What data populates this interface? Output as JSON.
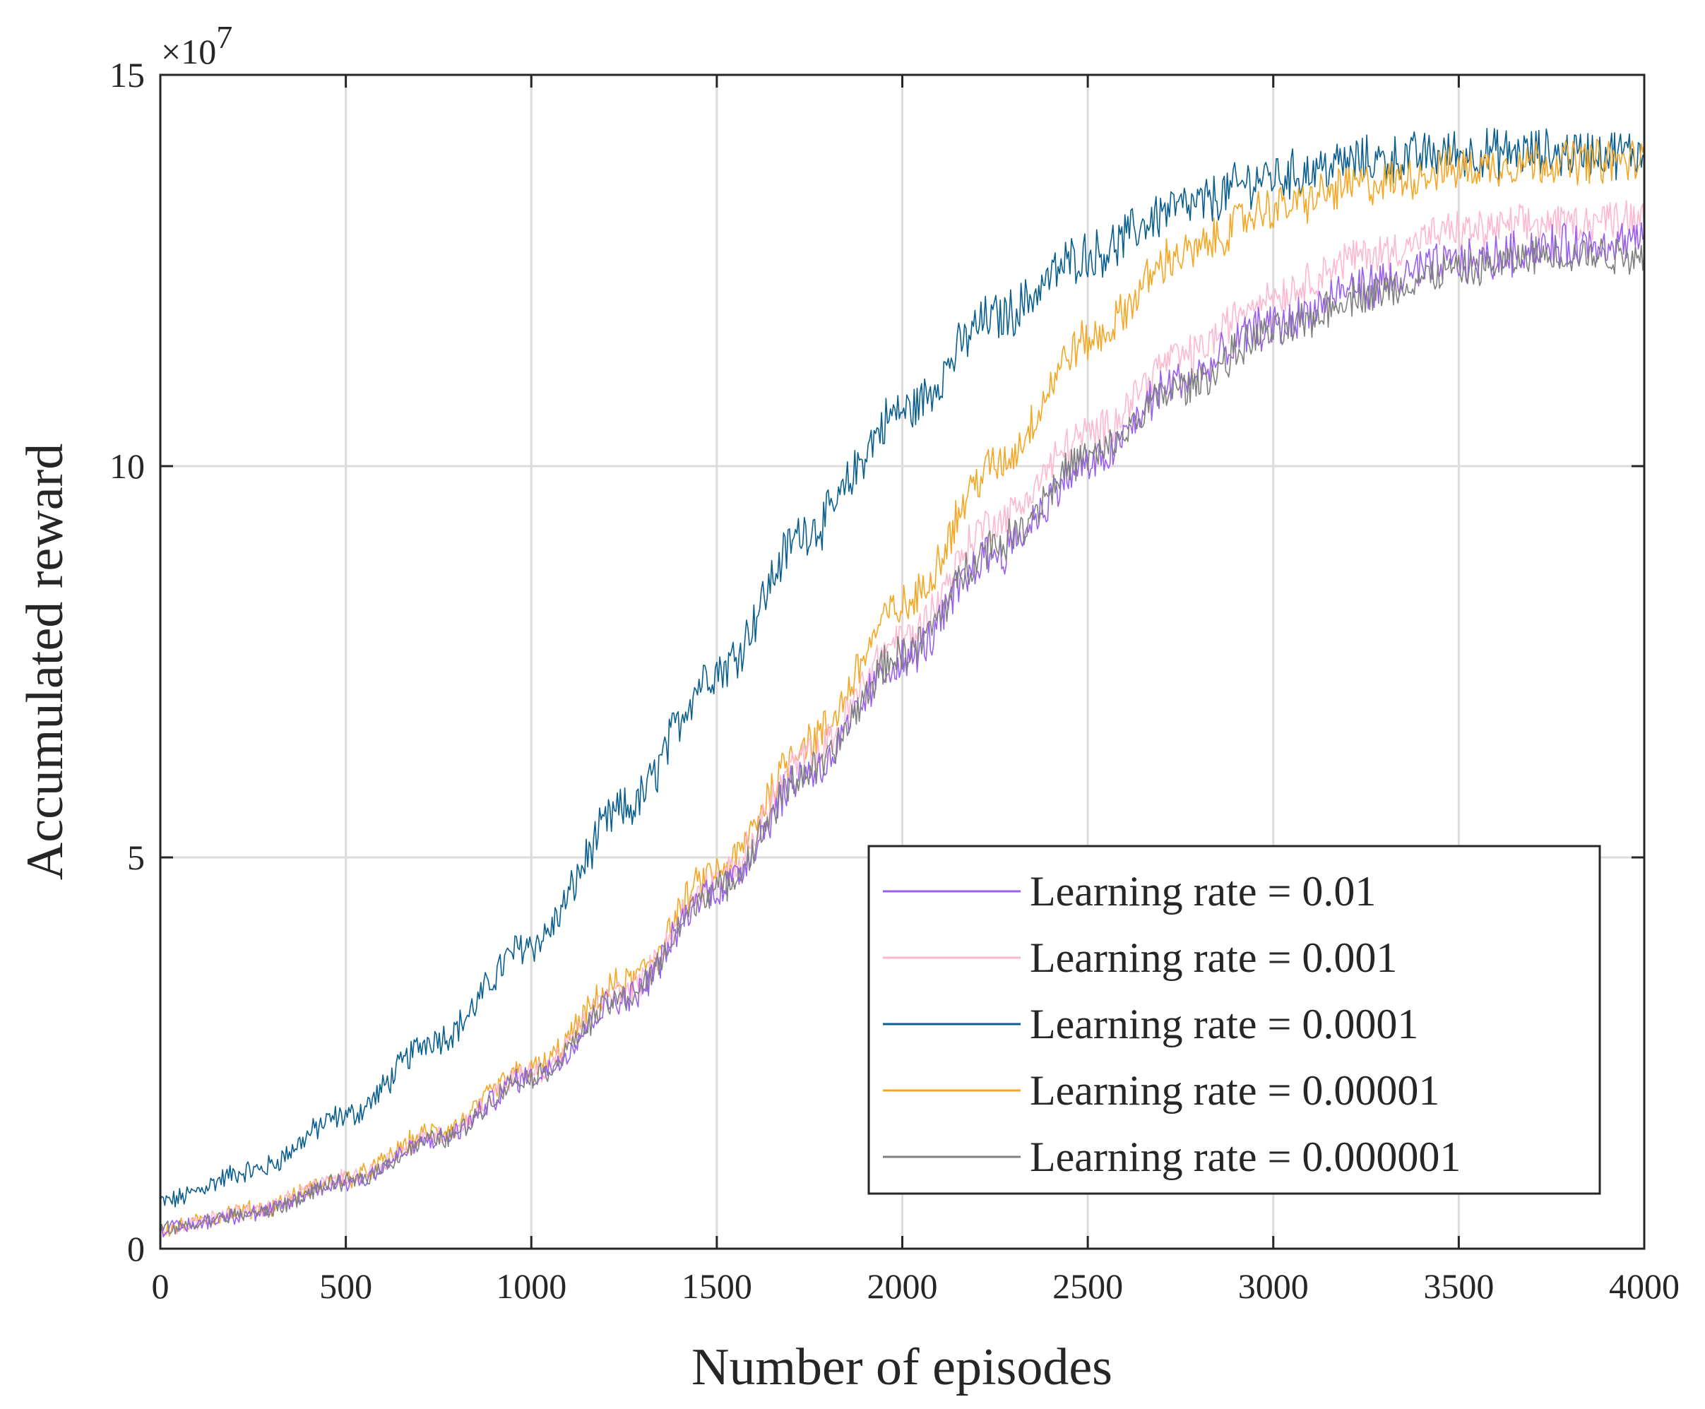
{
  "chart_data": {
    "type": "line",
    "title": "",
    "xlabel": "Number of episodes",
    "ylabel": "Accumulated reward",
    "xlim": [
      0,
      4000
    ],
    "ylim": [
      0,
      15
    ],
    "y_multiplier_label": "×10",
    "y_multiplier_exponent": "7",
    "x_ticks": [
      0,
      500,
      1000,
      1500,
      2000,
      2500,
      3000,
      3500,
      4000
    ],
    "y_ticks": [
      0,
      5,
      10,
      15
    ],
    "grid": true,
    "legend_position": "bottom-right",
    "series": [
      {
        "name": "Learning rate = 0.01",
        "color": "#9a5ff0",
        "x": [
          0,
          250,
          500,
          750,
          1000,
          1250,
          1500,
          1750,
          2000,
          2250,
          2500,
          2750,
          3000,
          3250,
          3500,
          3750,
          4000
        ],
        "values": [
          0.25,
          0.45,
          0.85,
          1.4,
          2.2,
          3.2,
          4.6,
          6.1,
          7.5,
          8.9,
          10.0,
          11.1,
          11.8,
          12.3,
          12.6,
          12.8,
          12.9
        ],
        "noise": 0.25
      },
      {
        "name": "Learning rate = 0.001",
        "color": "#ffb6d1",
        "x": [
          0,
          250,
          500,
          750,
          1000,
          1250,
          1500,
          1750,
          2000,
          2250,
          2500,
          2750,
          3000,
          3250,
          3500,
          3750,
          4000
        ],
        "values": [
          0.25,
          0.5,
          0.9,
          1.45,
          2.25,
          3.3,
          4.7,
          6.3,
          7.8,
          9.3,
          10.4,
          11.4,
          12.2,
          12.7,
          13.0,
          13.1,
          13.2
        ],
        "noise": 0.22
      },
      {
        "name": "Learning rate = 0.0001",
        "color": "#0a5f8f",
        "x": [
          0,
          250,
          500,
          750,
          1000,
          1250,
          1500,
          1750,
          2000,
          2250,
          2500,
          2750,
          3000,
          3250,
          3500,
          3750,
          4000
        ],
        "values": [
          0.6,
          1.0,
          1.7,
          2.7,
          3.9,
          5.6,
          7.4,
          9.2,
          10.7,
          11.9,
          12.7,
          13.3,
          13.7,
          13.9,
          14.0,
          14.0,
          14.0
        ],
        "noise": 0.28
      },
      {
        "name": "Learning rate = 0.00001",
        "color": "#f5a623",
        "x": [
          0,
          250,
          500,
          750,
          1000,
          1250,
          1500,
          1750,
          2000,
          2250,
          2500,
          2750,
          3000,
          3250,
          3500,
          3750,
          4000
        ],
        "values": [
          0.25,
          0.5,
          0.9,
          1.5,
          2.3,
          3.4,
          4.8,
          6.5,
          8.2,
          10.0,
          11.6,
          12.7,
          13.3,
          13.6,
          13.8,
          13.9,
          13.9
        ],
        "noise": 0.25
      },
      {
        "name": "Learning rate = 0.000001",
        "color": "#808080",
        "x": [
          0,
          250,
          500,
          750,
          1000,
          1250,
          1500,
          1750,
          2000,
          2250,
          2500,
          2750,
          3000,
          3250,
          3500,
          3750,
          4000
        ],
        "values": [
          0.25,
          0.45,
          0.85,
          1.4,
          2.2,
          3.2,
          4.6,
          6.1,
          7.6,
          9.0,
          10.1,
          11.0,
          11.7,
          12.2,
          12.5,
          12.7,
          12.7
        ],
        "noise": 0.22
      }
    ]
  }
}
